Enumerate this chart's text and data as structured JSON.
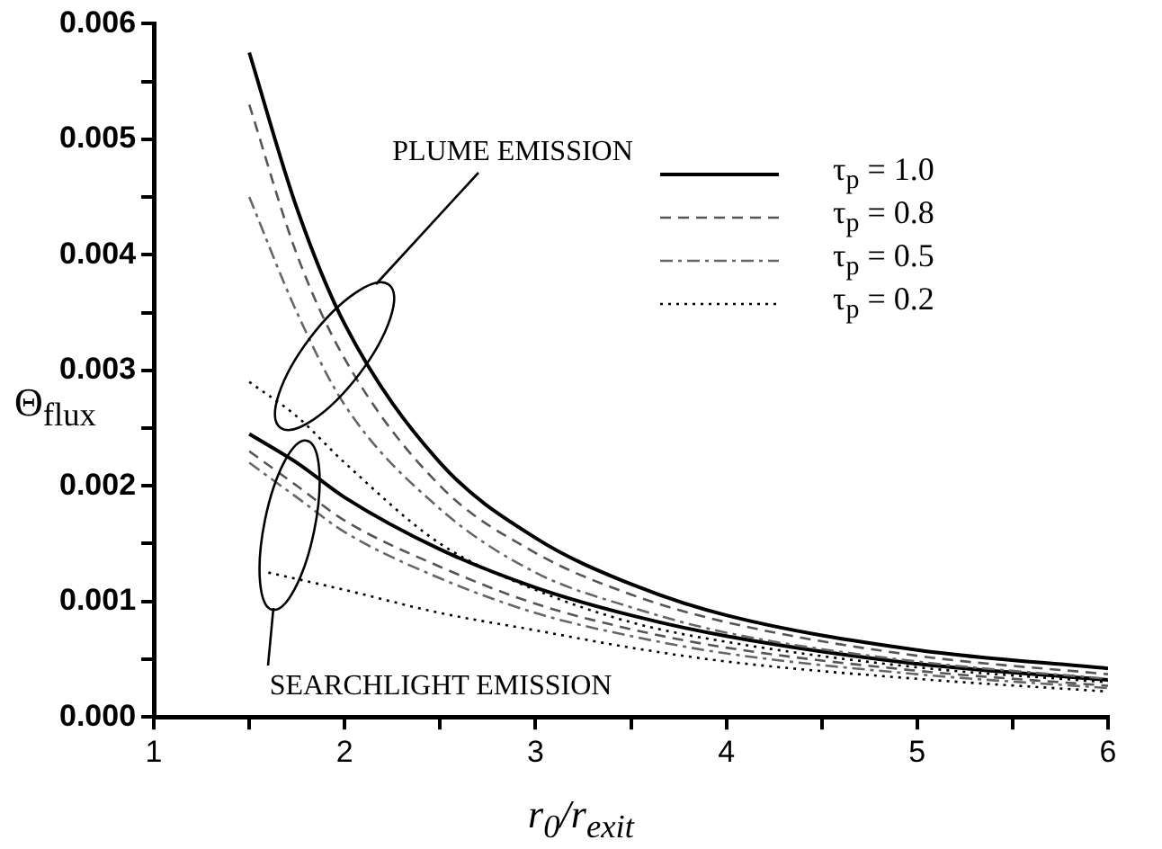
{
  "chart_data": {
    "type": "line",
    "xlabel": "r$_{0}$/r$_{exit}$",
    "ylabel": "Θ$_{flux}$",
    "xlim": [
      1,
      6
    ],
    "xticks": [
      1,
      {
        "value": 1.5,
        "label": null
      },
      2,
      {
        "value": 2.5,
        "label": null
      },
      3,
      {
        "value": 3.5,
        "label": null
      },
      4,
      {
        "value": 4.5,
        "label": null
      },
      5,
      {
        "value": 5.5,
        "label": null
      },
      6
    ],
    "ylim": [
      0,
      0.006
    ],
    "yticks": [
      {
        "value": 0,
        "label": "0.000"
      },
      {
        "value": 0.0005,
        "label": null
      },
      {
        "value": 0.001,
        "label": "0.001"
      },
      {
        "value": 0.0015,
        "label": null
      },
      {
        "value": 0.002,
        "label": "0.002"
      },
      {
        "value": 0.0025,
        "label": null
      },
      {
        "value": 0.003,
        "label": "0.003"
      },
      {
        "value": 0.0035,
        "label": null
      },
      {
        "value": 0.004,
        "label": "0.004"
      },
      {
        "value": 0.0045,
        "label": null
      },
      {
        "value": 0.005,
        "label": "0.005"
      },
      {
        "value": 0.0055,
        "label": null
      },
      {
        "value": 0.006,
        "label": "0.006"
      }
    ],
    "grid": false,
    "legend": "top right",
    "marker": "none",
    "annotations": [
      "PLUME EMISSION",
      "SEARCHLIGHT EMISSION"
    ],
    "series": [
      {
        "name": "τ$_{p}$ = 1.0",
        "color": "#000000",
        "line_style": "solid",
        "x": [
          1.5,
          1.75,
          2,
          2.5,
          3,
          3.5,
          4,
          5,
          6
        ],
        "values": [
          0.00575,
          0.0044,
          0.0034,
          0.0022,
          0.00155,
          0.00115,
          0.00088,
          0.00058,
          0.00042
        ]
      },
      {
        "name": "τ$_{p}$ = 0.8",
        "color": "#555555",
        "line_style": "dashed",
        "x": [
          1.5,
          1.75,
          2,
          2.5,
          3,
          3.5,
          4,
          5,
          6
        ],
        "values": [
          0.0053,
          0.004,
          0.0031,
          0.002,
          0.00142,
          0.00106,
          0.00082,
          0.00053,
          0.00037
        ]
      },
      {
        "name": "τ$_{p}$ = 0.5",
        "color": "#666666",
        "line_style": "dashdot",
        "x": [
          1.5,
          1.75,
          2,
          2.5,
          3,
          3.5,
          4,
          5,
          6
        ],
        "values": [
          0.0045,
          0.0035,
          0.0027,
          0.0018,
          0.00125,
          0.00095,
          0.00073,
          0.00048,
          0.00033
        ]
      },
      {
        "name": "τ$_{p}$ = 0.2",
        "color": "#000000",
        "line_style": "dotted",
        "x": [
          1.5,
          1.75,
          2,
          2.5,
          3,
          3.5,
          4,
          5,
          6
        ],
        "values": [
          0.0029,
          0.0026,
          0.0022,
          0.0015,
          0.0011,
          0.00082,
          0.00065,
          0.00043,
          0.0003
        ]
      },
      {
        "color": "#000000",
        "line_style": "solid",
        "x": [
          1.5,
          1.75,
          2,
          2.5,
          3,
          3.5,
          4,
          5,
          6
        ],
        "values": [
          0.00245,
          0.0022,
          0.0019,
          0.00145,
          0.00112,
          0.00088,
          0.0007,
          0.00046,
          0.00032
        ]
      },
      {
        "color": "#555555",
        "line_style": "dashed",
        "x": [
          1.5,
          1.75,
          2,
          2.5,
          3,
          3.5,
          4,
          5,
          6
        ],
        "values": [
          0.0023,
          0.002,
          0.0017,
          0.0013,
          0.00098,
          0.00076,
          0.0006,
          0.0004,
          0.00027
        ]
      },
      {
        "color": "#666666",
        "line_style": "dashdot",
        "x": [
          1.5,
          1.75,
          2,
          2.5,
          3,
          3.5,
          4,
          5,
          6
        ],
        "values": [
          0.0022,
          0.0019,
          0.0016,
          0.0012,
          0.0009,
          0.0007,
          0.00055,
          0.00037,
          0.00025
        ]
      },
      {
        "color": "#000000",
        "line_style": "dotted",
        "x": [
          1.6,
          2,
          2.5,
          3,
          3.5,
          4,
          5,
          6
        ],
        "values": [
          0.00125,
          0.0011,
          0.0009,
          0.00075,
          0.0006,
          0.00048,
          0.00033,
          0.00022
        ]
      }
    ]
  }
}
